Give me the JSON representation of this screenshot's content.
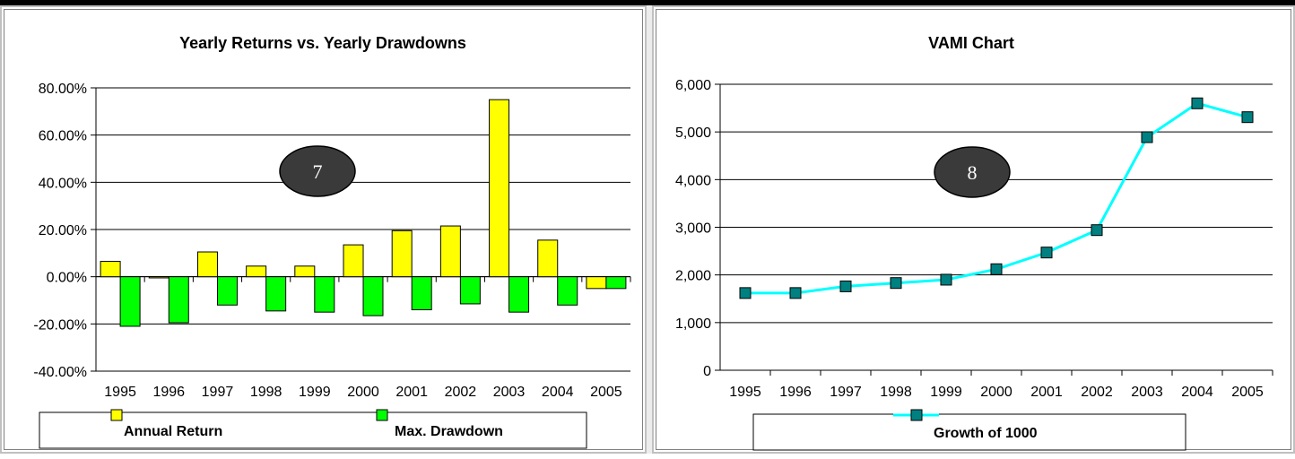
{
  "chart_data": [
    {
      "type": "bar",
      "title": "Yearly Returns vs. Yearly Drawdowns",
      "categories": [
        "1995",
        "1996",
        "1997",
        "1998",
        "1999",
        "2000",
        "2001",
        "2002",
        "2003",
        "2004",
        "2005"
      ],
      "series": [
        {
          "name": "Annual Return",
          "color": "#ffff00",
          "values": [
            6.5,
            -0.5,
            10.5,
            4.5,
            4.5,
            13.5,
            19.5,
            21.5,
            75,
            15.5,
            -5
          ]
        },
        {
          "name": "Max. Drawdown",
          "color": "#00ff00",
          "values": [
            -21,
            -19.5,
            -12,
            -14.5,
            -15,
            -16.5,
            -14,
            -11.5,
            -15,
            -12,
            -5
          ]
        }
      ],
      "ylim": [
        -40,
        80
      ],
      "yticks": [
        "-40.00%",
        "-20.00%",
        "0.00%",
        "20.00%",
        "40.00%",
        "60.00%",
        "80.00%"
      ],
      "ytick_values": [
        -40,
        -20,
        0,
        20,
        40,
        60,
        80
      ],
      "grid": true,
      "legend_position": "bottom",
      "badge": "7"
    },
    {
      "type": "line",
      "title": "VAMI Chart",
      "categories": [
        "1995",
        "1996",
        "1997",
        "1998",
        "1999",
        "2000",
        "2001",
        "2002",
        "2003",
        "2004",
        "2005"
      ],
      "series": [
        {
          "name": "Growth of 1000",
          "color": "#00ffff",
          "marker_color": "#008080",
          "values": [
            1620,
            1620,
            1760,
            1830,
            1900,
            2120,
            2470,
            2940,
            4890,
            5600,
            5310
          ]
        }
      ],
      "ylim": [
        0,
        6000
      ],
      "yticks": [
        "0",
        "1,000",
        "2,000",
        "3,000",
        "4,000",
        "5,000",
        "6,000"
      ],
      "ytick_values": [
        0,
        1000,
        2000,
        3000,
        4000,
        5000,
        6000
      ],
      "grid": true,
      "legend_position": "bottom",
      "badge": "8"
    }
  ]
}
